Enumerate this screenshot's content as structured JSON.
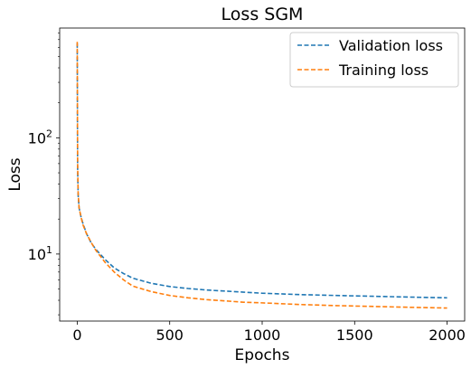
{
  "chart_data": {
    "type": "line",
    "title": "Loss SGM",
    "xlabel": "Epochs",
    "ylabel": "Loss",
    "xlim": [
      -95,
      2095
    ],
    "ylim": [
      2.65,
      880
    ],
    "yscale": "log",
    "grid": false,
    "legend_position": "top-right",
    "x_ticks": [
      {
        "value": 0,
        "label": "0"
      },
      {
        "value": 500,
        "label": "500"
      },
      {
        "value": 1000,
        "label": "1000"
      },
      {
        "value": 1500,
        "label": "1500"
      },
      {
        "value": 2000,
        "label": "2000"
      }
    ],
    "y_ticks": [
      {
        "value": 10,
        "label": "10",
        "exp": "1"
      },
      {
        "value": 100,
        "label": "10",
        "exp": "2"
      }
    ],
    "series": [
      {
        "name": "Validation loss",
        "color": "#1f77b4",
        "x": [
          0,
          2,
          5,
          10,
          20,
          30,
          50,
          75,
          100,
          150,
          200,
          250,
          300,
          400,
          500,
          600,
          700,
          800,
          900,
          1000,
          1200,
          1400,
          1600,
          1800,
          2000
        ],
        "y": [
          650,
          55,
          32,
          25,
          21,
          18.5,
          15,
          12.5,
          11,
          9,
          7.6,
          6.8,
          6.2,
          5.6,
          5.25,
          5.05,
          4.9,
          4.8,
          4.7,
          4.6,
          4.48,
          4.4,
          4.33,
          4.26,
          4.2
        ]
      },
      {
        "name": "Training loss",
        "color": "#ff7f0e",
        "x": [
          0,
          2,
          5,
          10,
          20,
          30,
          50,
          75,
          100,
          150,
          200,
          250,
          300,
          400,
          500,
          600,
          700,
          800,
          900,
          1000,
          1200,
          1400,
          1600,
          1800,
          2000
        ],
        "y": [
          670,
          60,
          33,
          25,
          21,
          18,
          15,
          12.6,
          10.8,
          8.5,
          7.0,
          6.0,
          5.3,
          4.75,
          4.4,
          4.2,
          4.05,
          3.95,
          3.85,
          3.8,
          3.68,
          3.6,
          3.54,
          3.48,
          3.43
        ]
      }
    ]
  }
}
